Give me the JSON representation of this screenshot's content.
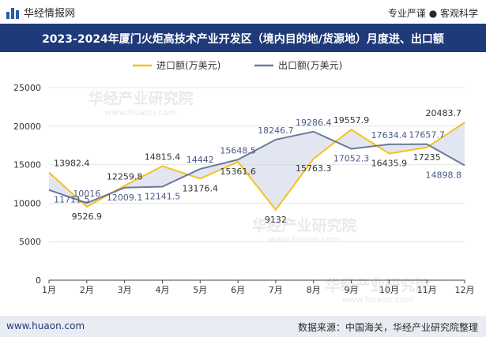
{
  "header": {
    "brand": "华经情报网",
    "tagline": "专业严谨 ● 客观科学"
  },
  "title_bar": {
    "title": "2023-2024年厦门火炬高技术产业开发区（境内目的地/货源地）月度进、出口额"
  },
  "footer": {
    "website": "www.huaon.com",
    "source": "数据来源：中国海关，华经产业研究院整理"
  },
  "watermark": {
    "text": "华经产业研究院",
    "url": "www.huaon.com"
  },
  "colors": {
    "import": "#f5c21b",
    "export": "#6b7a99",
    "title_bg": "#1f3a78"
  },
  "chart_data": {
    "type": "line",
    "title": "",
    "xlabel": "",
    "ylabel": "",
    "categories": [
      "1月",
      "2月",
      "3月",
      "4月",
      "5月",
      "6月",
      "7月",
      "8月",
      "9月",
      "10月",
      "11月",
      "12月"
    ],
    "ylim": [
      0,
      25000
    ],
    "yticks": [
      0,
      5000,
      10000,
      15000,
      20000,
      25000
    ],
    "legend_position": "top-center",
    "grid": true,
    "series": [
      {
        "name": "进口额(万美元)",
        "values": [
          13982.4,
          9526.9,
          12259.8,
          14815.4,
          13176.4,
          15361.6,
          9132,
          15763.3,
          19557.9,
          16435.9,
          17235,
          20483.7
        ]
      },
      {
        "name": "出口额(万美元)",
        "values": [
          11711.5,
          10016,
          12009.1,
          12141.5,
          14442,
          15648.5,
          18246.7,
          19286.4,
          17052.3,
          17634.4,
          17657.7,
          14898.8
        ]
      }
    ]
  }
}
